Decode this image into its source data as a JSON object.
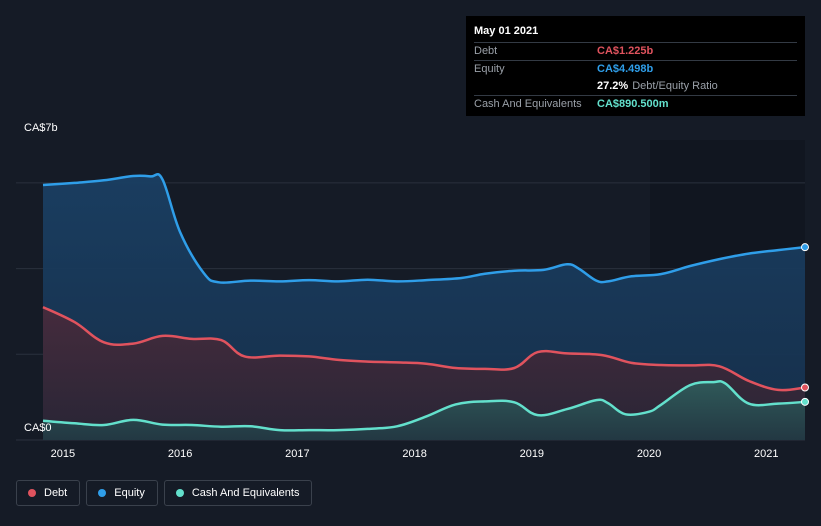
{
  "tooltip": {
    "date": "May 01 2021",
    "debt_label": "Debt",
    "debt_value": "CA$1.225b",
    "equity_label": "Equity",
    "equity_value": "CA$4.498b",
    "ratio_value": "27.2%",
    "ratio_label": "Debt/Equity Ratio",
    "cash_label": "Cash And Equivalents",
    "cash_value": "CA$890.500m"
  },
  "legend": [
    {
      "label": "Debt",
      "color": "#e0535e"
    },
    {
      "label": "Equity",
      "color": "#2f9ee9"
    },
    {
      "label": "Cash And Equivalents",
      "color": "#63e0cc"
    }
  ],
  "colors": {
    "debt": "#e0535e",
    "equity": "#2f9ee9",
    "cash": "#63e0cc",
    "background": "#151b26"
  },
  "chart_data": {
    "type": "area",
    "y_top_label": "CA$7b",
    "y_bottom_label": "CA$0",
    "ylim": [
      0,
      7
    ],
    "xlim": [
      2014.6,
      2021.33
    ],
    "x_ticks": [
      "2015",
      "2016",
      "2017",
      "2018",
      "2019",
      "2020",
      "2021"
    ],
    "series": [
      {
        "name": "Equity",
        "x": [
          2014.83,
          2015.1,
          2015.35,
          2015.6,
          2015.75,
          2015.85,
          2016.0,
          2016.2,
          2016.33,
          2016.6,
          2016.85,
          2017.1,
          2017.35,
          2017.6,
          2017.85,
          2018.1,
          2018.4,
          2018.6,
          2018.85,
          2019.1,
          2019.3,
          2019.4,
          2019.55,
          2019.65,
          2019.85,
          2020.1,
          2020.35,
          2020.6,
          2020.85,
          2021.1,
          2021.33
        ],
        "values": [
          5.95,
          6.0,
          6.06,
          6.16,
          6.15,
          6.08,
          4.85,
          3.9,
          3.68,
          3.72,
          3.7,
          3.73,
          3.7,
          3.74,
          3.7,
          3.73,
          3.78,
          3.88,
          3.95,
          3.97,
          4.1,
          4.0,
          3.72,
          3.7,
          3.82,
          3.87,
          4.06,
          4.22,
          4.35,
          4.43,
          4.5
        ]
      },
      {
        "name": "Debt",
        "x": [
          2014.83,
          2015.1,
          2015.35,
          2015.6,
          2015.85,
          2016.1,
          2016.35,
          2016.55,
          2016.85,
          2017.1,
          2017.35,
          2017.6,
          2017.85,
          2018.1,
          2018.35,
          2018.6,
          2018.85,
          2019.05,
          2019.3,
          2019.6,
          2019.85,
          2020.1,
          2020.35,
          2020.6,
          2020.85,
          2021.1,
          2021.33
        ],
        "values": [
          3.1,
          2.75,
          2.28,
          2.25,
          2.43,
          2.36,
          2.33,
          1.95,
          1.97,
          1.95,
          1.87,
          1.83,
          1.81,
          1.78,
          1.68,
          1.66,
          1.68,
          2.05,
          2.02,
          1.98,
          1.8,
          1.75,
          1.74,
          1.72,
          1.38,
          1.17,
          1.225
        ]
      },
      {
        "name": "Cash And Equivalents",
        "x": [
          2014.83,
          2015.1,
          2015.35,
          2015.6,
          2015.85,
          2016.1,
          2016.35,
          2016.6,
          2016.85,
          2017.1,
          2017.35,
          2017.6,
          2017.85,
          2018.1,
          2018.35,
          2018.6,
          2018.85,
          2019.05,
          2019.3,
          2019.55,
          2019.65,
          2019.8,
          2020.0,
          2020.1,
          2020.35,
          2020.55,
          2020.65,
          2020.85,
          2021.1,
          2021.33
        ],
        "values": [
          0.45,
          0.39,
          0.35,
          0.47,
          0.36,
          0.35,
          0.31,
          0.32,
          0.23,
          0.23,
          0.23,
          0.26,
          0.32,
          0.55,
          0.83,
          0.9,
          0.88,
          0.58,
          0.72,
          0.93,
          0.86,
          0.6,
          0.66,
          0.82,
          1.28,
          1.35,
          1.32,
          0.85,
          0.85,
          0.89
        ]
      }
    ],
    "legend_position": "bottom-left",
    "grid": true
  }
}
